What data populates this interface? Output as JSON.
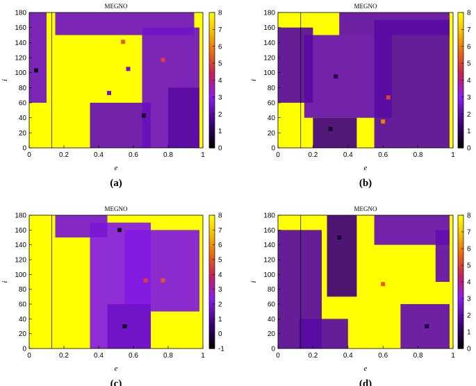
{
  "chart_data": [
    {
      "type": "heatmap",
      "panel_label": "(a)",
      "title": "MEGNO",
      "xlabel": "e",
      "ylabel": "i",
      "xlim": [
        0,
        1
      ],
      "ylim": [
        0,
        180
      ],
      "x_ticks": [
        "0",
        "0.2",
        "0.4",
        "0.6",
        "0.8",
        "1"
      ],
      "y_ticks": [
        "0",
        "20",
        "40",
        "60",
        "80",
        "100",
        "120",
        "140",
        "160",
        "180"
      ],
      "colorbar": {
        "range": [
          0,
          8
        ],
        "ticks": [
          "0",
          "1",
          "2",
          "3",
          "4",
          "5",
          "6",
          "7",
          "8"
        ]
      },
      "vertical_line_e": 0.13,
      "regions": [
        {
          "value": 2.5,
          "e": [
            0.0,
            0.1
          ],
          "i": [
            60,
            180
          ]
        },
        {
          "value": 2.5,
          "e": [
            0.15,
            0.95
          ],
          "i": [
            150,
            180
          ]
        },
        {
          "value": 2.5,
          "e": [
            0.65,
            0.98
          ],
          "i": [
            0,
            160
          ]
        },
        {
          "value": 2.3,
          "e": [
            0.35,
            0.7
          ],
          "i": [
            0,
            60
          ]
        },
        {
          "value": 2.0,
          "e": [
            0.8,
            0.98
          ],
          "i": [
            0,
            80
          ]
        }
      ],
      "hotspots": [
        {
          "value": 0.5,
          "e": 0.04,
          "i": 103
        },
        {
          "value": 5.5,
          "e": 0.54,
          "i": 141
        },
        {
          "value": 5.0,
          "e": 0.77,
          "i": 117
        },
        {
          "value": 0.5,
          "e": 0.66,
          "i": 43
        },
        {
          "value": 2.5,
          "e": 0.57,
          "i": 105
        },
        {
          "value": 2.5,
          "e": 0.46,
          "i": 73
        }
      ]
    },
    {
      "type": "heatmap",
      "panel_label": "(b)",
      "title": "MEGNO",
      "xlabel": "e",
      "ylabel": "i",
      "xlim": [
        0,
        1
      ],
      "ylim": [
        0,
        180
      ],
      "x_ticks": [
        "0",
        "0.2",
        "0.4",
        "0.6",
        "0.8",
        "1"
      ],
      "y_ticks": [
        "0",
        "20",
        "40",
        "60",
        "80",
        "100",
        "120",
        "140",
        "160",
        "180"
      ],
      "colorbar": {
        "range": [
          0,
          8
        ],
        "ticks": [
          "0",
          "1",
          "2",
          "3",
          "4",
          "5",
          "6",
          "7",
          "8"
        ]
      },
      "vertical_line_e": 0.13,
      "regions": [
        {
          "value": 2.3,
          "e": [
            0.15,
            0.65
          ],
          "i": [
            40,
            150
          ]
        },
        {
          "value": 2.0,
          "e": [
            0.0,
            0.2
          ],
          "i": [
            60,
            160
          ]
        },
        {
          "value": 2.2,
          "e": [
            0.35,
            0.98
          ],
          "i": [
            150,
            180
          ]
        },
        {
          "value": 2.0,
          "e": [
            0.55,
            0.98
          ],
          "i": [
            0,
            170
          ]
        },
        {
          "value": 1.6,
          "e": [
            0.2,
            0.45
          ],
          "i": [
            0,
            40
          ]
        }
      ],
      "hotspots": [
        {
          "value": 0.8,
          "e": 0.33,
          "i": 95
        },
        {
          "value": 5.0,
          "e": 0.63,
          "i": 67
        },
        {
          "value": 6.0,
          "e": 0.6,
          "i": 35
        },
        {
          "value": 0.6,
          "e": 0.3,
          "i": 25
        }
      ]
    },
    {
      "type": "heatmap",
      "panel_label": "(c)",
      "title": "MEGNO",
      "xlabel": "e",
      "ylabel": "i",
      "xlim": [
        0,
        1
      ],
      "ylim": [
        0,
        180
      ],
      "x_ticks": [
        "0",
        "0.2",
        "0.4",
        "0.6",
        "0.8",
        "1"
      ],
      "y_ticks": [
        "0",
        "20",
        "40",
        "60",
        "80",
        "100",
        "120",
        "140",
        "160",
        "180"
      ],
      "colorbar": {
        "range": [
          -1,
          8
        ],
        "ticks": [
          "-1",
          "0",
          "1",
          "2",
          "3",
          "4",
          "5",
          "6",
          "7",
          "8"
        ]
      },
      "vertical_line_e": 0.13,
      "regions": [
        {
          "value": 2.3,
          "e": [
            0.35,
            0.7
          ],
          "i": [
            0,
            170
          ]
        },
        {
          "value": 2.0,
          "e": [
            0.15,
            0.45
          ],
          "i": [
            150,
            180
          ]
        },
        {
          "value": 2.2,
          "e": [
            0.55,
            0.98
          ],
          "i": [
            50,
            160
          ]
        },
        {
          "value": 1.8,
          "e": [
            0.45,
            0.7
          ],
          "i": [
            0,
            60
          ]
        }
      ],
      "hotspots": [
        {
          "value": 5.0,
          "e": 0.77,
          "i": 92
        },
        {
          "value": 4.5,
          "e": 0.67,
          "i": 92
        },
        {
          "value": -0.5,
          "e": 0.55,
          "i": 30
        },
        {
          "value": -0.5,
          "e": 0.52,
          "i": 160
        }
      ]
    },
    {
      "type": "heatmap",
      "panel_label": "(d)",
      "title": "MEGNO",
      "xlabel": "e",
      "ylabel": "i",
      "xlim": [
        0,
        1
      ],
      "ylim": [
        0,
        180
      ],
      "x_ticks": [
        "0",
        "0.2",
        "0.4",
        "0.6",
        "0.8",
        "1"
      ],
      "y_ticks": [
        "0",
        "20",
        "40",
        "60",
        "80",
        "100",
        "120",
        "140",
        "160",
        "180"
      ],
      "colorbar": {
        "range": [
          0,
          8
        ],
        "ticks": [
          "0",
          "1",
          "2",
          "3",
          "4",
          "5",
          "6",
          "7",
          "8"
        ]
      },
      "vertical_line_e": 0.13,
      "regions": [
        {
          "value": 2.0,
          "e": [
            0.0,
            0.25
          ],
          "i": [
            0,
            160
          ]
        },
        {
          "value": 2.0,
          "e": [
            0.12,
            0.4
          ],
          "i": [
            0,
            40
          ]
        },
        {
          "value": 1.5,
          "e": [
            0.28,
            0.45
          ],
          "i": [
            70,
            180
          ]
        },
        {
          "value": 2.3,
          "e": [
            0.55,
            0.98
          ],
          "i": [
            140,
            180
          ]
        },
        {
          "value": 2.2,
          "e": [
            0.7,
            0.98
          ],
          "i": [
            0,
            60
          ]
        },
        {
          "value": 2.2,
          "e": [
            0.9,
            0.98
          ],
          "i": [
            90,
            160
          ]
        }
      ],
      "hotspots": [
        {
          "value": 0.6,
          "e": 0.35,
          "i": 150
        },
        {
          "value": 0.8,
          "e": 0.85,
          "i": 30
        },
        {
          "value": 5.5,
          "e": 0.6,
          "i": 87
        }
      ]
    }
  ]
}
